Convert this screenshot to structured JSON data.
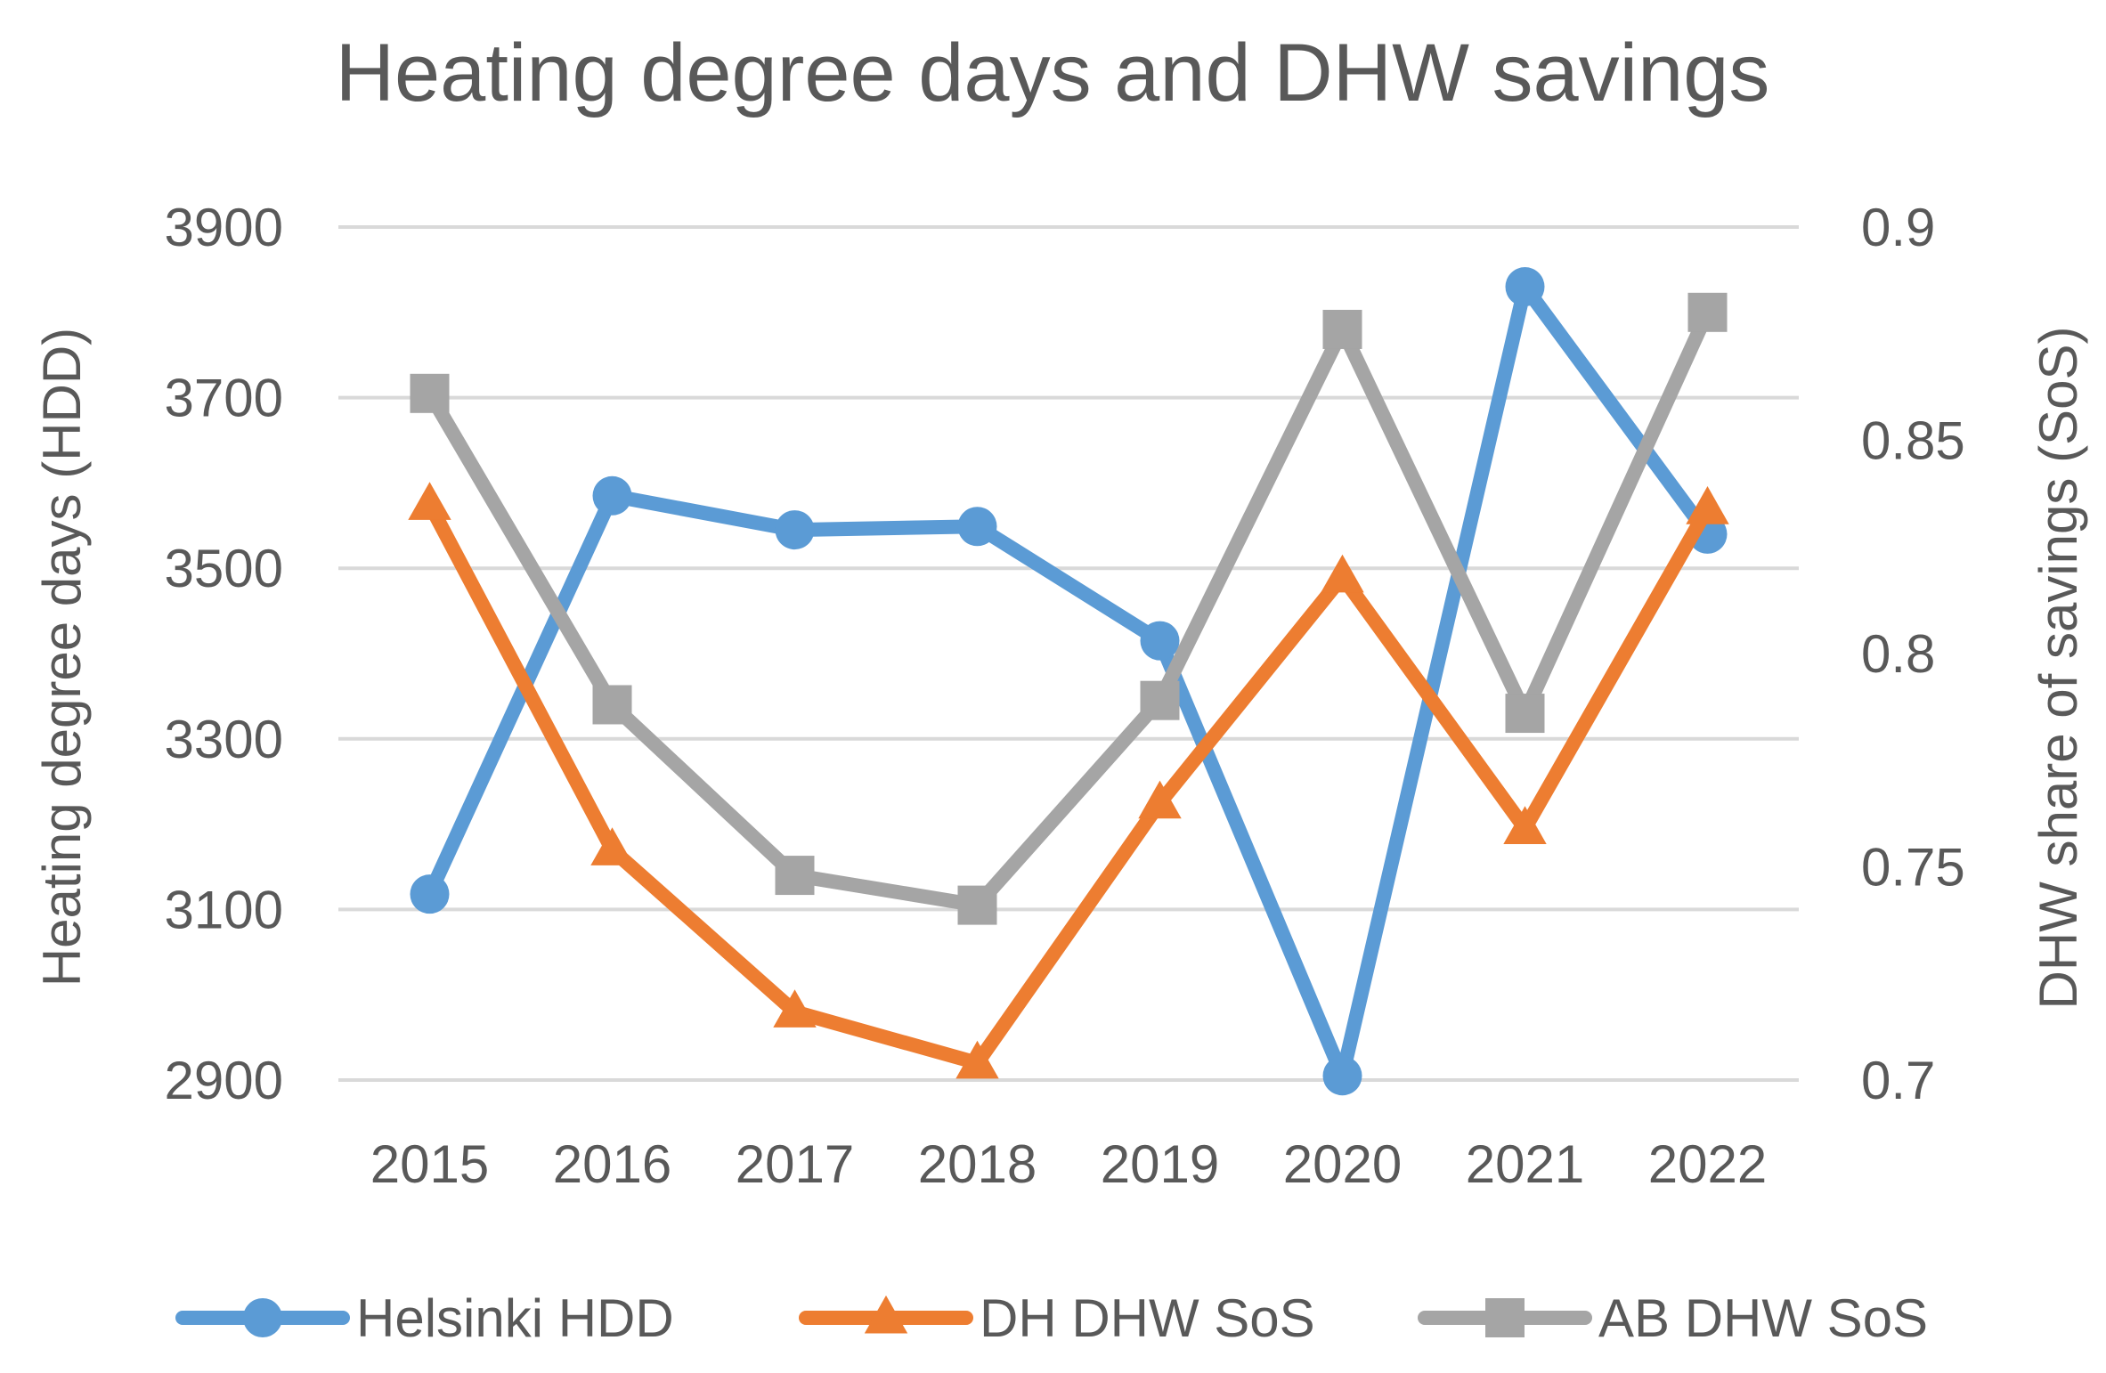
{
  "chart_data": {
    "type": "line",
    "title": "Heating degree days and DHW savings",
    "categories": [
      "2015",
      "2016",
      "2017",
      "2018",
      "2019",
      "2020",
      "2021",
      "2022"
    ],
    "left_axis": {
      "label": "Heating degree days (HDD)",
      "ticks": [
        "3900",
        "3700",
        "3500",
        "3300",
        "3100",
        "2900"
      ],
      "range": [
        2900,
        3900
      ]
    },
    "right_axis": {
      "label": "DHW share of savings (SoS)",
      "ticks": [
        "0.9",
        "0.85",
        "0.8",
        "0.75",
        "0.7"
      ],
      "range": [
        0.7,
        0.9
      ]
    },
    "series": [
      {
        "name": "Helsinki HDD",
        "axis": "left",
        "marker": "circle",
        "color": "#5b9bd5",
        "values": [
          3118,
          3585,
          3545,
          3549,
          3415,
          2905,
          3830,
          3540
        ]
      },
      {
        "name": "DH DHW SoS",
        "axis": "right",
        "marker": "triangle",
        "color": "#ed7d31",
        "values": [
          0.835,
          0.754,
          0.716,
          0.704,
          0.765,
          0.818,
          0.759,
          0.834
        ]
      },
      {
        "name": "AB DHW SoS",
        "axis": "right",
        "marker": "square",
        "color": "#a5a5a5",
        "values": [
          0.861,
          0.788,
          0.748,
          0.741,
          0.789,
          0.876,
          0.786,
          0.88
        ]
      }
    ],
    "legend_position": "bottom",
    "grid": true
  }
}
